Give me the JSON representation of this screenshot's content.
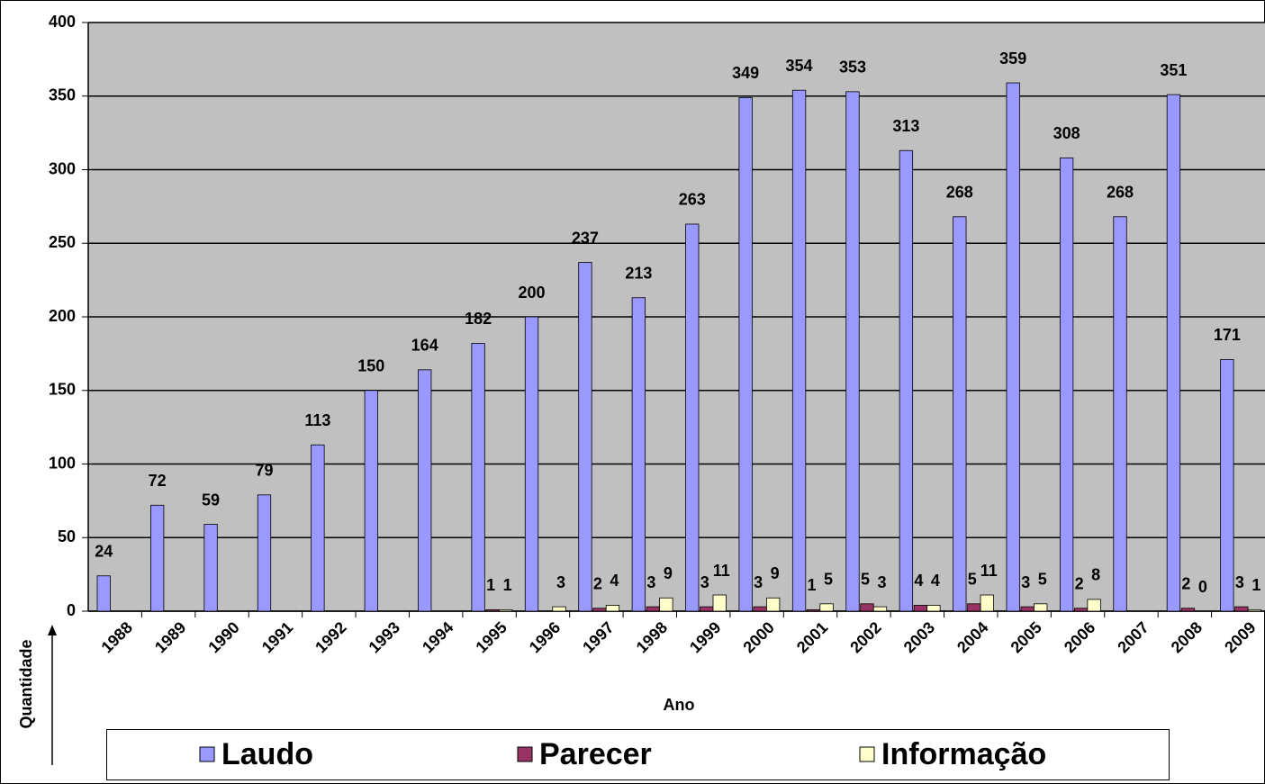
{
  "chart_data": {
    "type": "bar",
    "x_label": "Ano",
    "y_label": "Quantidade",
    "categories": [
      "1988",
      "1989",
      "1990",
      "1991",
      "1992",
      "1993",
      "1994",
      "1995",
      "1996",
      "1997",
      "1998",
      "1999",
      "2000",
      "2001",
      "2002",
      "2003",
      "2004",
      "2005",
      "2006",
      "2007",
      "2008",
      "2009"
    ],
    "series": [
      {
        "name": "Laudo",
        "color": "#9999ff",
        "values": [
          24,
          72,
          59,
          79,
          113,
          150,
          164,
          182,
          200,
          237,
          213,
          263,
          349,
          354,
          353,
          313,
          268,
          359,
          308,
          268,
          351,
          171
        ]
      },
      {
        "name": "Parecer",
        "color": "#993366",
        "values": [
          null,
          null,
          null,
          null,
          null,
          null,
          null,
          1,
          null,
          2,
          3,
          3,
          3,
          1,
          5,
          4,
          5,
          3,
          2,
          null,
          2,
          3
        ]
      },
      {
        "name": "Informação",
        "color": "#ffffcc",
        "values": [
          null,
          null,
          null,
          null,
          null,
          null,
          null,
          1,
          3,
          4,
          9,
          11,
          9,
          5,
          3,
          4,
          11,
          5,
          8,
          null,
          0,
          1
        ]
      }
    ],
    "ylim": [
      0,
      400
    ],
    "yticks": [
      0,
      50,
      100,
      150,
      200,
      250,
      300,
      350,
      400
    ],
    "grid": true,
    "legend": "bottom"
  }
}
